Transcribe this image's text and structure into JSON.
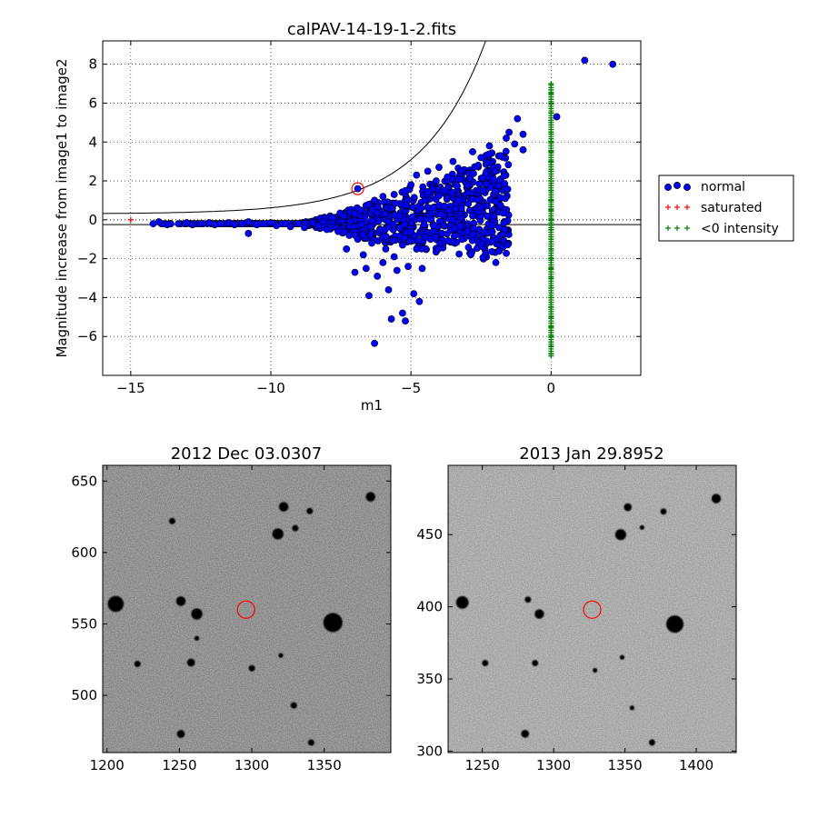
{
  "chart_data": [
    {
      "type": "scatter",
      "title": "calPAV-14-19-1-2.fits",
      "xlabel": "m1",
      "ylabel": "Magnitude increase from image1 to image2",
      "xlim": [
        -16,
        3.2
      ],
      "ylim": [
        -8,
        9.2
      ],
      "xticks": [
        -15,
        -10,
        -5,
        0
      ],
      "xtick_labels": [
        "−15",
        "−10",
        "−5",
        "0"
      ],
      "yticks": [
        -6,
        -4,
        -2,
        0,
        2,
        4,
        6,
        8
      ],
      "ytick_labels": [
        "−6",
        "−4",
        "−2",
        "0",
        "2",
        "4",
        "6",
        "8"
      ],
      "grid": true,
      "legend_position": "right, outside axes",
      "colors": {
        "normal": "#0000ff",
        "saturated": "#ff0000",
        "negative": "#008000",
        "highlight": "#ff0000"
      },
      "series": [
        {
          "name": "normal",
          "marker": "circle",
          "points": [
            [
              -14.2,
              -0.2
            ],
            [
              -14.0,
              -0.1
            ],
            [
              -13.7,
              -0.25
            ],
            [
              -13.3,
              -0.2
            ],
            [
              -13.0,
              -0.15
            ],
            [
              -12.8,
              -0.25
            ],
            [
              -12.5,
              -0.2
            ],
            [
              -12.2,
              -0.15
            ],
            [
              -12.0,
              -0.25
            ],
            [
              -11.8,
              -0.2
            ],
            [
              -11.5,
              -0.15
            ],
            [
              -11.3,
              -0.25
            ],
            [
              -11.0,
              -0.2
            ],
            [
              -10.8,
              -0.1
            ],
            [
              -10.8,
              -0.7
            ],
            [
              -10.5,
              -0.25
            ],
            [
              -10.3,
              -0.2
            ],
            [
              -10.0,
              -0.15
            ],
            [
              -9.8,
              -0.3
            ],
            [
              -9.5,
              -0.2
            ],
            [
              -9.3,
              -0.35
            ],
            [
              -9.0,
              -0.2
            ],
            [
              -8.8,
              -0.4
            ],
            [
              -8.5,
              -0.15
            ],
            [
              -8.3,
              -0.3
            ],
            [
              -8.0,
              -0.5
            ],
            [
              -7.8,
              0.1
            ],
            [
              -7.6,
              -0.6
            ],
            [
              -7.4,
              0.2
            ],
            [
              -7.3,
              -1.5
            ],
            [
              -7.2,
              -0.8
            ],
            [
              -7.0,
              0.3
            ],
            [
              -7.0,
              -2.7
            ],
            [
              -6.9,
              -1.0
            ],
            [
              -6.8,
              0.5
            ],
            [
              -6.7,
              -1.8
            ],
            [
              -6.6,
              -2.5
            ],
            [
              -6.5,
              0.8
            ],
            [
              -6.5,
              -3.9
            ],
            [
              -6.4,
              -1.2
            ],
            [
              -6.3,
              1.0
            ],
            [
              -6.3,
              -6.35
            ],
            [
              -6.2,
              -2.9
            ],
            [
              -6.1,
              -0.5
            ],
            [
              -6.0,
              1.2
            ],
            [
              -6.0,
              -2.2
            ],
            [
              -5.9,
              -1.5
            ],
            [
              -5.8,
              -3.6
            ],
            [
              -5.7,
              0.6
            ],
            [
              -5.7,
              -5.1
            ],
            [
              -5.6,
              1.3
            ],
            [
              -5.6,
              -1.9
            ],
            [
              -5.5,
              -2.6
            ],
            [
              -5.4,
              0.2
            ],
            [
              -5.3,
              -4.8
            ],
            [
              -5.3,
              -1.3
            ],
            [
              -5.2,
              1.5
            ],
            [
              -5.2,
              -5.2
            ],
            [
              -5.1,
              -2.4
            ],
            [
              -5.0,
              1.8
            ],
            [
              -5.0,
              -0.6
            ],
            [
              -4.9,
              -3.8
            ],
            [
              -4.8,
              -1.5
            ],
            [
              -4.8,
              2.3
            ],
            [
              -4.7,
              -4.2
            ],
            [
              -4.6,
              -2.5
            ],
            [
              -4.5,
              1.0
            ],
            [
              -4.4,
              2.5
            ],
            [
              -4.3,
              -1.0
            ],
            [
              -4.2,
              -0.3
            ],
            [
              -4.1,
              2.0
            ],
            [
              -4.0,
              2.7
            ],
            [
              -3.9,
              -0.7
            ],
            [
              -3.8,
              1.5
            ],
            [
              -3.7,
              2.2
            ],
            [
              -3.5,
              0.0
            ],
            [
              -3.5,
              3.0
            ],
            [
              -3.3,
              1.0
            ],
            [
              -3.2,
              2.5
            ],
            [
              -3.0,
              1.8
            ],
            [
              -3.0,
              -0.6
            ],
            [
              -2.8,
              3.5
            ],
            [
              -2.8,
              0.2
            ],
            [
              -2.6,
              2.8
            ],
            [
              -2.5,
              3.2
            ],
            [
              -2.4,
              1.5
            ],
            [
              -2.2,
              3.8
            ],
            [
              -2.0,
              2.5
            ],
            [
              -1.8,
              3.3
            ],
            [
              -1.6,
              4.2
            ],
            [
              -1.5,
              4.5
            ],
            [
              -1.3,
              3.9
            ],
            [
              -1.2,
              5.2
            ],
            [
              -1.0,
              4.4
            ],
            [
              -1.0,
              3.6
            ],
            [
              -6.9,
              1.6
            ],
            [
              0.2,
              5.3
            ],
            [
              1.2,
              8.2
            ],
            [
              2.2,
              8.0
            ]
          ]
        },
        {
          "name": "saturated",
          "marker": "plus",
          "points": [
            [
              -15.0,
              0.0
            ]
          ]
        },
        {
          "name": "<0 intensity",
          "marker": "plus",
          "points": [
            [
              0,
              7.0
            ],
            [
              0,
              6.5
            ],
            [
              0,
              6.0
            ],
            [
              0,
              5.5
            ],
            [
              0,
              5.0
            ],
            [
              0,
              4.5
            ],
            [
              0,
              4.0
            ],
            [
              0,
              3.5
            ],
            [
              0,
              3.0
            ],
            [
              0,
              2.5
            ],
            [
              0,
              2.0
            ],
            [
              0,
              1.5
            ],
            [
              0,
              1.0
            ],
            [
              0,
              0.5
            ],
            [
              0,
              0.0
            ],
            [
              0,
              -0.5
            ],
            [
              0,
              -1.0
            ],
            [
              0,
              -1.5
            ],
            [
              0,
              -2.0
            ],
            [
              0,
              -2.5
            ],
            [
              0,
              -3.0
            ],
            [
              0,
              -3.5
            ],
            [
              0,
              -4.0
            ],
            [
              0,
              -4.5
            ],
            [
              0,
              -5.0
            ],
            [
              0,
              -5.5
            ],
            [
              0,
              -6.0
            ],
            [
              0,
              -6.5
            ],
            [
              0,
              -6.9
            ]
          ]
        }
      ],
      "highlight_point": [
        -6.9,
        1.6
      ],
      "horizontal_lines_y": [
        -0.25
      ]
    },
    {
      "type": "heatmap",
      "title": "2012 Dec 03.0307",
      "xlim": [
        1197,
        1396
      ],
      "ylim": [
        460,
        661
      ],
      "xticks": [
        1200,
        1250,
        1300,
        1350
      ],
      "xtick_labels": [
        "1200",
        "1250",
        "1300",
        "1350"
      ],
      "yticks": [
        500,
        550,
        600,
        650
      ],
      "ytick_labels": [
        "500",
        "550",
        "600",
        "650"
      ],
      "background_gray": "#bdbdbd",
      "circle_marker": [
        1296,
        560
      ],
      "stars": [
        [
          1206,
          564,
          5
        ],
        [
          1251,
          566,
          3
        ],
        [
          1262,
          557,
          3.5
        ],
        [
          1245,
          622,
          2
        ],
        [
          1318,
          613,
          3.5
        ],
        [
          1322,
          632,
          3
        ],
        [
          1330,
          617,
          2
        ],
        [
          1340,
          629,
          2
        ],
        [
          1382,
          639,
          3
        ],
        [
          1356,
          551,
          6
        ],
        [
          1258,
          523,
          2.5
        ],
        [
          1221,
          522,
          2
        ],
        [
          1300,
          519,
          2
        ],
        [
          1320,
          528,
          1.5
        ],
        [
          1329,
          493,
          2
        ],
        [
          1251,
          473,
          2.5
        ],
        [
          1341,
          467,
          2
        ],
        [
          1262,
          540,
          1.5
        ]
      ]
    },
    {
      "type": "heatmap",
      "title": "2013 Jan 29.8952",
      "xlim": [
        1226,
        1428
      ],
      "ylim": [
        299,
        498
      ],
      "xticks": [
        1250,
        1300,
        1350,
        1400
      ],
      "xtick_labels": [
        "1250",
        "1300",
        "1350",
        "1400"
      ],
      "yticks": [
        300,
        350,
        400,
        450
      ],
      "ytick_labels": [
        "300",
        "350",
        "400",
        "450"
      ],
      "background_gray": "#d0d0d0",
      "circle_marker": [
        1327,
        398
      ],
      "stars": [
        [
          1236,
          403,
          4
        ],
        [
          1290,
          395,
          3
        ],
        [
          1282,
          405,
          2
        ],
        [
          1347,
          450,
          3.5
        ],
        [
          1352,
          469,
          2.5
        ],
        [
          1362,
          455,
          1.5
        ],
        [
          1377,
          466,
          2
        ],
        [
          1414,
          475,
          3
        ],
        [
          1385,
          388,
          5.5
        ],
        [
          1287,
          361,
          2
        ],
        [
          1252,
          361,
          2
        ],
        [
          1280,
          312,
          2.5
        ],
        [
          1329,
          356,
          1.5
        ],
        [
          1348,
          365,
          1.5
        ],
        [
          1369,
          306,
          2
        ],
        [
          1355,
          330,
          1.5
        ]
      ]
    }
  ]
}
